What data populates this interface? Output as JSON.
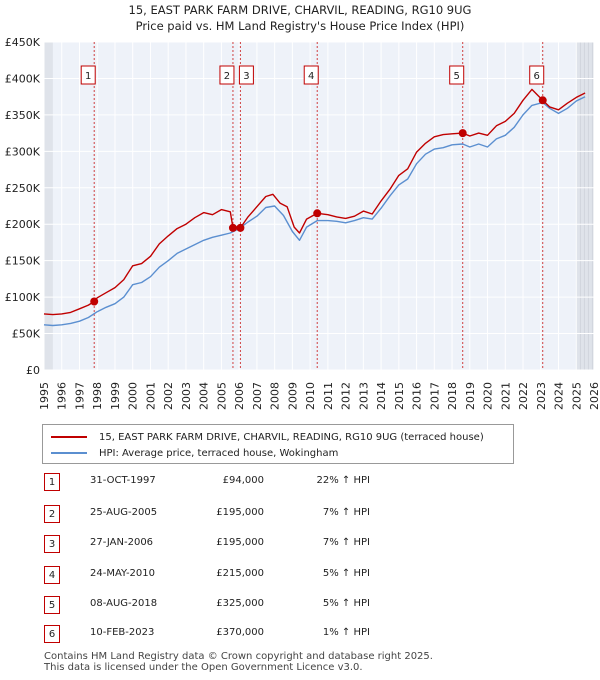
{
  "chart_data": {
    "type": "line",
    "title": "15, EAST PARK FARM DRIVE, CHARVIL, READING, RG10 9UG",
    "subtitle": "Price paid vs. HM Land Registry's House Price Index (HPI)",
    "xlim": [
      1995,
      2026
    ],
    "ylim": [
      0,
      450000
    ],
    "x_ticks": [
      "1995",
      "1996",
      "1997",
      "1998",
      "1999",
      "2000",
      "2001",
      "2002",
      "2003",
      "2004",
      "2005",
      "2006",
      "2007",
      "2008",
      "2009",
      "2010",
      "2011",
      "2012",
      "2013",
      "2014",
      "2015",
      "2016",
      "2017",
      "2018",
      "2019",
      "2020",
      "2021",
      "2022",
      "2023",
      "2024",
      "2025",
      "2026"
    ],
    "y_ticks": [
      {
        "value": 0,
        "label": "£0"
      },
      {
        "value": 50000,
        "label": "£50K"
      },
      {
        "value": 100000,
        "label": "£100K"
      },
      {
        "value": 150000,
        "label": "£150K"
      },
      {
        "value": 200000,
        "label": "£200K"
      },
      {
        "value": 250000,
        "label": "£250K"
      },
      {
        "value": 300000,
        "label": "£300K"
      },
      {
        "value": 350000,
        "label": "£350K"
      },
      {
        "value": 400000,
        "label": "£400K"
      },
      {
        "value": 450000,
        "label": "£450K"
      }
    ],
    "shaded_ranges": [
      [
        1995,
        1995.5
      ],
      [
        2025,
        2026
      ]
    ],
    "series": [
      {
        "name": "15, EAST PARK FARM DRIVE, CHARVIL, READING, RG10 9UG (terraced house)",
        "color": "#c00000",
        "x": [
          1995,
          1995.5,
          1996,
          1996.5,
          1997,
          1997.5,
          1997.83,
          1998,
          1998.5,
          1999,
          1999.5,
          2000,
          2000.5,
          2001,
          2001.5,
          2002,
          2002.5,
          2003,
          2003.5,
          2004,
          2004.5,
          2005,
          2005.5,
          2005.65,
          2006.07,
          2006.5,
          2007,
          2007.5,
          2007.9,
          2008.3,
          2008.7,
          2009.1,
          2009.4,
          2009.8,
          2010.4,
          2011,
          2011.5,
          2012,
          2012.5,
          2013,
          2013.5,
          2014,
          2014.5,
          2015,
          2015.5,
          2016,
          2016.5,
          2017,
          2017.5,
          2018,
          2018.6,
          2019,
          2019.5,
          2020,
          2020.5,
          2021,
          2021.5,
          2022,
          2022.5,
          2023.11,
          2023.5,
          2024,
          2024.5,
          2025,
          2025.5
        ],
        "y": [
          77000,
          76000,
          77000,
          79000,
          84000,
          89000,
          94000,
          99000,
          106000,
          113000,
          124000,
          143000,
          146000,
          156000,
          173000,
          184000,
          194000,
          200000,
          209000,
          216000,
          213000,
          220000,
          217000,
          195000,
          195000,
          210000,
          224000,
          238000,
          241000,
          229000,
          224000,
          196000,
          188000,
          207000,
          215000,
          213000,
          210000,
          208000,
          211000,
          218000,
          214000,
          232000,
          248000,
          267000,
          276000,
          299000,
          311000,
          320000,
          323000,
          324000,
          325000,
          321000,
          325000,
          322000,
          335000,
          341000,
          352000,
          370000,
          385000,
          370000,
          361000,
          357000,
          366000,
          374000,
          380000
        ]
      },
      {
        "name": "HPI: Average price, terraced house, Wokingham",
        "color": "#5b8fd0",
        "x": [
          1995,
          1995.5,
          1996,
          1996.5,
          1997,
          1997.5,
          1998,
          1998.5,
          1999,
          1999.5,
          2000,
          2000.5,
          2001,
          2001.5,
          2002,
          2002.5,
          2003,
          2003.5,
          2004,
          2004.5,
          2005,
          2005.5,
          2006,
          2006.5,
          2007,
          2007.5,
          2008,
          2008.5,
          2009,
          2009.4,
          2009.8,
          2010.4,
          2011,
          2011.5,
          2012,
          2012.5,
          2013,
          2013.5,
          2014,
          2014.5,
          2015,
          2015.5,
          2016,
          2016.5,
          2017,
          2017.5,
          2018,
          2018.6,
          2019,
          2019.5,
          2020,
          2020.5,
          2021,
          2021.5,
          2022,
          2022.5,
          2023.11,
          2023.5,
          2024,
          2024.5,
          2025,
          2025.5
        ],
        "y": [
          62000,
          61000,
          62000,
          64000,
          67000,
          72000,
          80000,
          86000,
          91000,
          100000,
          117000,
          120000,
          128000,
          141000,
          150000,
          160000,
          166000,
          172000,
          178000,
          182000,
          185000,
          188000,
          194000,
          203000,
          211000,
          223000,
          225000,
          212000,
          190000,
          178000,
          196000,
          205000,
          205000,
          204000,
          202000,
          205000,
          209000,
          207000,
          222000,
          239000,
          254000,
          262000,
          283000,
          296000,
          303000,
          305000,
          309000,
          310000,
          306000,
          310000,
          306000,
          317000,
          322000,
          333000,
          350000,
          363000,
          367000,
          359000,
          352000,
          359000,
          369000,
          375000
        ]
      }
    ],
    "sales": [
      {
        "n": "1",
        "x": 1997.83,
        "price": 94000
      },
      {
        "n": "2",
        "x": 2005.65,
        "price": 195000
      },
      {
        "n": "3",
        "x": 2006.07,
        "price": 195000
      },
      {
        "n": "4",
        "x": 2010.4,
        "price": 215000
      },
      {
        "n": "5",
        "x": 2018.6,
        "price": 325000
      },
      {
        "n": "6",
        "x": 2023.11,
        "price": 370000
      }
    ]
  },
  "legend": {
    "property_label": "15, EAST PARK FARM DRIVE, CHARVIL, READING, RG10 9UG (terraced house)",
    "hpi_label": "HPI: Average price, terraced house, Wokingham",
    "property_color": "#c00000",
    "hpi_color": "#5b8fd0"
  },
  "table": [
    {
      "n": "1",
      "date": "31-OCT-1997",
      "price": "£94,000",
      "hpi": "22% ↑ HPI"
    },
    {
      "n": "2",
      "date": "25-AUG-2005",
      "price": "£195,000",
      "hpi": "7% ↑ HPI"
    },
    {
      "n": "3",
      "date": "27-JAN-2006",
      "price": "£195,000",
      "hpi": "7% ↑ HPI"
    },
    {
      "n": "4",
      "date": "24-MAY-2010",
      "price": "£215,000",
      "hpi": "5% ↑ HPI"
    },
    {
      "n": "5",
      "date": "08-AUG-2018",
      "price": "£325,000",
      "hpi": "5% ↑ HPI"
    },
    {
      "n": "6",
      "date": "10-FEB-2023",
      "price": "£370,000",
      "hpi": "1% ↑ HPI"
    }
  ],
  "footer": {
    "line1": "Contains HM Land Registry data © Crown copyright and database right 2025.",
    "line2": "This data is licensed under the Open Government Licence v3.0."
  }
}
